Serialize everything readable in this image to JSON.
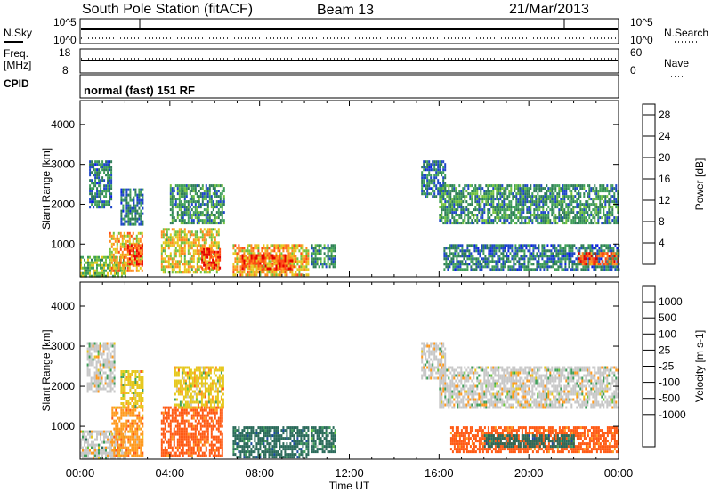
{
  "header": {
    "station": "South Pole Station (fitACF)",
    "beam": "Beam 13",
    "date": "21/Mar/2013"
  },
  "status_panels": {
    "nsky_label": "N.Sky",
    "nsearch_label": "N.Search",
    "noise_ticks": [
      "10^5",
      "10^0"
    ],
    "freq_label_line1": "Freq.",
    "freq_label_line2": "[MHz]",
    "freq_ticks": [
      "18",
      "8"
    ],
    "nave_label": "Nave",
    "nave_ticks": [
      "60",
      "0"
    ],
    "cpid_label": "CPID",
    "cpid_value": "normal (fast) 151 RF"
  },
  "colors": {
    "power_scale": [
      "#0a1ee6",
      "#1e46c8",
      "#2e7d57",
      "#3f9f5a",
      "#74c23e",
      "#e6c81e",
      "#ff8a1e",
      "#ff4a14",
      "#e60000"
    ],
    "velocity_scale": [
      "#1e3ccd",
      "#1a4aa0",
      "#2a6a5a",
      "#3f9f5a",
      "#6cc83c",
      "#c8c8c8",
      "#e6c81e",
      "#ff9a1e",
      "#ff5a14",
      "#e60000"
    ]
  },
  "chart_data": [
    {
      "type": "heatmap",
      "panel": "power",
      "xlabel": "Time UT",
      "ylabel": "Slant Range [km]",
      "xlim_hours": [
        0,
        24
      ],
      "ylim_km": [
        180,
        4600
      ],
      "xticks": [
        "00:00",
        "04:00",
        "08:00",
        "12:00",
        "16:00",
        "20:00",
        "00:00"
      ],
      "yticks": [
        1000,
        2000,
        3000,
        4000
      ],
      "colorbar": {
        "label": "Power [dB]",
        "ticks": [
          4,
          8,
          12,
          16,
          20,
          24,
          28
        ],
        "range": [
          0,
          30
        ]
      },
      "patches": [
        {
          "t0": 0.0,
          "t1": 2.0,
          "r0": 200,
          "r1": 700,
          "value": 14
        },
        {
          "t0": 0.4,
          "t1": 1.4,
          "r0": 1900,
          "r1": 3100,
          "value": 8
        },
        {
          "t0": 1.3,
          "t1": 2.8,
          "r0": 300,
          "r1": 1300,
          "value": 20
        },
        {
          "t0": 1.8,
          "t1": 2.8,
          "r0": 1500,
          "r1": 2400,
          "value": 8
        },
        {
          "t0": 2.1,
          "t1": 2.8,
          "r0": 500,
          "r1": 1000,
          "value": 26
        },
        {
          "t0": 3.6,
          "t1": 6.2,
          "r0": 300,
          "r1": 1400,
          "value": 18
        },
        {
          "t0": 4.0,
          "t1": 6.4,
          "r0": 1500,
          "r1": 2500,
          "value": 10
        },
        {
          "t0": 5.4,
          "t1": 6.2,
          "r0": 400,
          "r1": 900,
          "value": 26
        },
        {
          "t0": 6.8,
          "t1": 10.2,
          "r0": 250,
          "r1": 1000,
          "value": 20
        },
        {
          "t0": 7.2,
          "t1": 9.5,
          "r0": 350,
          "r1": 750,
          "value": 24
        },
        {
          "t0": 10.3,
          "t1": 11.4,
          "r0": 400,
          "r1": 1000,
          "value": 10
        },
        {
          "t0": 15.2,
          "t1": 16.3,
          "r0": 2200,
          "r1": 3100,
          "value": 8
        },
        {
          "t0": 16.0,
          "t1": 24.0,
          "r0": 1500,
          "r1": 2500,
          "value": 10
        },
        {
          "t0": 16.2,
          "t1": 24.0,
          "r0": 350,
          "r1": 1000,
          "value": 8
        },
        {
          "t0": 22.2,
          "t1": 24.0,
          "r0": 500,
          "r1": 800,
          "value": 24
        }
      ]
    },
    {
      "type": "heatmap",
      "panel": "velocity",
      "xlabel": "Time UT",
      "ylabel": "Slant Range [km]",
      "xlim_hours": [
        0,
        24
      ],
      "ylim_km": [
        180,
        4600
      ],
      "xticks": [
        "00:00",
        "04:00",
        "08:00",
        "12:00",
        "16:00",
        "20:00",
        "00:00"
      ],
      "yticks": [
        1000,
        2000,
        3000,
        4000
      ],
      "colorbar": {
        "label": "Velocity [m s-1]",
        "ticks": [
          1000,
          500,
          100,
          25,
          -25,
          -100,
          -500,
          -1000
        ]
      },
      "patches": [
        {
          "t0": 0.0,
          "t1": 2.0,
          "r0": 200,
          "r1": 900,
          "value": 10
        },
        {
          "t0": 0.3,
          "t1": 1.5,
          "r0": 1900,
          "r1": 3100,
          "value": 0
        },
        {
          "t0": 1.4,
          "t1": 2.8,
          "r0": 300,
          "r1": 1500,
          "value": -200
        },
        {
          "t0": 1.8,
          "t1": 2.8,
          "r0": 1500,
          "r1": 2400,
          "value": -30
        },
        {
          "t0": 3.6,
          "t1": 6.3,
          "r0": 300,
          "r1": 1500,
          "value": -300
        },
        {
          "t0": 4.2,
          "t1": 6.4,
          "r0": 1500,
          "r1": 2500,
          "value": -60
        },
        {
          "t0": 6.8,
          "t1": 10.2,
          "r0": 250,
          "r1": 1000,
          "value": 300
        },
        {
          "t0": 10.3,
          "t1": 11.4,
          "r0": 400,
          "r1": 1000,
          "value": 200
        },
        {
          "t0": 15.2,
          "t1": 16.3,
          "r0": 2200,
          "r1": 3100,
          "value": 0
        },
        {
          "t0": 16.0,
          "t1": 24.0,
          "r0": 1500,
          "r1": 2500,
          "value": 0
        },
        {
          "t0": 16.5,
          "t1": 24.0,
          "r0": 350,
          "r1": 1000,
          "value": -300
        },
        {
          "t0": 18.0,
          "t1": 22.0,
          "r0": 500,
          "r1": 800,
          "value": 300
        }
      ]
    }
  ]
}
